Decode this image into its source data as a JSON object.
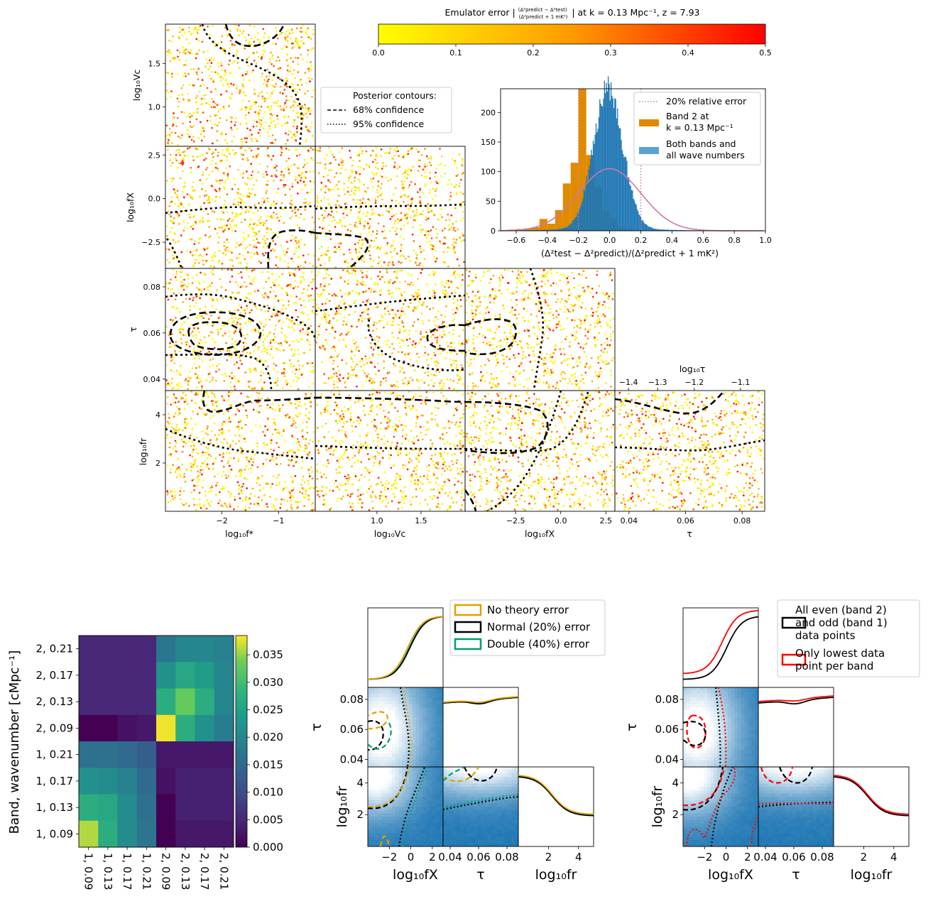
{
  "colors": {
    "scatter_low": "#ffff00",
    "scatter_high": "#ff0000",
    "hist_orange": "#e08a00",
    "hist_blue": "#1f77b4",
    "hist_blue_light": "#5ba3d0",
    "gauss": "#cc79a7",
    "theory_orange": "#e69f00",
    "theory_black": "#000000",
    "theory_green": "#009e73",
    "lowest_red": "#ff0000"
  },
  "chart_data": [
    {
      "type": "scatter",
      "name": "emulator-error-corner",
      "colorbar": {
        "label": "Emulator error |(Δ²predict − Δ²test)/(Δ²predict + 1 mK²)| at k = 0.13 Mpc⁻¹, z = 7.93",
        "label_parts": {
          "prefix": "Emulator error |",
          "num": "(Δ²predict − Δ²test)",
          "den": "(Δ²predict + 1 mK²)",
          "suffix": "| at k = 0.13 Mpc⁻¹, z = 7.93"
        },
        "range": [
          0,
          0.5
        ],
        "ticks": [
          "0.0",
          "0.1",
          "0.2",
          "0.3",
          "0.4",
          "0.5"
        ]
      },
      "legend": {
        "title": "Posterior contours:",
        "entries": [
          "68% confidence",
          "95% confidence"
        ],
        "placement": "right of top panel"
      },
      "parameters": [
        {
          "name": "log10 f*",
          "xlabel": "log₁₀f*",
          "range": [
            -3.0,
            -0.35
          ],
          "ticks": [
            {
              "v": -2,
              "t": "−2"
            },
            {
              "v": -1,
              "t": "−1"
            }
          ]
        },
        {
          "name": "log10 Vc",
          "xlabel": "log₁₀Vc",
          "ylabel": "log₁₀Vc",
          "range": [
            0.3,
            2.0
          ],
          "ticks": [
            {
              "v": 1.0,
              "t": "1.0"
            },
            {
              "v": 1.5,
              "t": "1.5"
            }
          ]
        },
        {
          "name": "log10 fX",
          "xlabel": "log₁₀fX",
          "ylabel": "log₁₀fX",
          "range": [
            -5.3,
            3.0
          ],
          "ticks": [
            {
              "v": -2.5,
              "t": "−2.5"
            },
            {
              "v": 0.0,
              "t": "0.0"
            },
            {
              "v": 2.5,
              "t": "2.5"
            }
          ]
        },
        {
          "name": "tau",
          "xlabel": "τ",
          "ylabel": "τ",
          "range": [
            0.035,
            0.088
          ],
          "ticks": [
            {
              "v": 0.04,
              "t": "0.04"
            },
            {
              "v": 0.06,
              "t": "0.06"
            },
            {
              "v": 0.08,
              "t": "0.08"
            }
          ]
        },
        {
          "name": "log10 fr",
          "ylabel": "log₁₀fr",
          "range": [
            0.0,
            5.0
          ],
          "ticks": [
            {
              "v": 2,
              "t": "2"
            },
            {
              "v": 4,
              "t": "4"
            }
          ]
        }
      ],
      "ylabels": {
        "vc": "log₁₀Vc",
        "fx": "log₁₀fX",
        "tau": "τ",
        "fr": "log₁₀fr"
      },
      "yticks": {
        "vc": [
          {
            "v": 1.0,
            "t": "1.0"
          },
          {
            "v": 1.5,
            "t": "1.5"
          }
        ],
        "fx": [
          {
            "v": -2.5,
            "t": "−2.5"
          },
          {
            "v": 0.0,
            "t": "0.0"
          },
          {
            "v": 2.5,
            "t": "2.5"
          }
        ],
        "tau": [
          {
            "v": 0.04,
            "t": "0.04"
          },
          {
            "v": 0.06,
            "t": "0.06"
          },
          {
            "v": 0.08,
            "t": "0.08"
          }
        ],
        "fr": [
          {
            "v": 2,
            "t": "2"
          },
          {
            "v": 4,
            "t": "4"
          }
        ]
      },
      "top_axis": {
        "label": "log₁₀τ",
        "ticks": [
          {
            "v": -1.4,
            "t": "−1.4"
          },
          {
            "v": -1.3,
            "t": "−1.3"
          },
          {
            "v": -1.2,
            "t": "−1.2"
          },
          {
            "v": -1.1,
            "t": "−1.1"
          }
        ]
      }
    },
    {
      "type": "bar",
      "name": "relative-error-histogram",
      "xlabel": "(Δ²test − Δ²predict)/(Δ²predict + 1 mK²)",
      "xlim": [
        -0.7,
        1.0
      ],
      "ylim": [
        0,
        240
      ],
      "xticks": [
        {
          "v": -0.6,
          "t": "−0.6"
        },
        {
          "v": -0.4,
          "t": "−0.4"
        },
        {
          "v": -0.2,
          "t": "−0.2"
        },
        {
          "v": 0.0,
          "t": "0.0"
        },
        {
          "v": 0.2,
          "t": "0.2"
        },
        {
          "v": 0.4,
          "t": "0.4"
        },
        {
          "v": 0.6,
          "t": "0.6"
        },
        {
          "v": 0.8,
          "t": "0.8"
        },
        {
          "v": 1.0,
          "t": "1.0"
        }
      ],
      "yticks": [
        {
          "v": 0,
          "t": "0"
        },
        {
          "v": 50,
          "t": "50"
        },
        {
          "v": 100,
          "t": "100"
        },
        {
          "v": 150,
          "t": "150"
        },
        {
          "v": 200,
          "t": "200"
        }
      ],
      "vlines": [
        -0.2,
        0.2
      ],
      "gauss": {
        "mean": 0.0,
        "sigma": 0.2,
        "peak": 105
      },
      "blue": {
        "mean": -0.01,
        "sigma": 0.095,
        "peak": 240
      },
      "orange_bins": {
        "start": -0.65,
        "width": 0.05,
        "values": [
          2,
          3,
          4,
          6,
          20,
          12,
          35,
          80,
          115,
          240,
          128,
          75,
          35,
          22,
          6,
          3,
          1
        ]
      },
      "legend": {
        "entries": [
          "20% relative error",
          "Band 2 at",
          "k = 0.13 Mpc⁻¹",
          "Both bands and",
          "all wave numbers"
        ],
        "placement": "top-right"
      }
    },
    {
      "type": "heatmap",
      "name": "covariance-heatmap",
      "ylabel": "Band, wavenumber [cMpc⁻¹]",
      "labels": [
        "1, 0.09",
        "1, 0.13",
        "1, 0.17",
        "1, 0.21",
        "2, 0.09",
        "2, 0.13",
        "2, 0.17",
        "2, 0.21"
      ],
      "rows_top_to_bottom": [
        [
          0.005,
          0.005,
          0.005,
          0.005,
          0.017,
          0.02,
          0.02,
          0.019
        ],
        [
          0.005,
          0.005,
          0.005,
          0.005,
          0.022,
          0.026,
          0.024,
          0.02
        ],
        [
          0.005,
          0.005,
          0.005,
          0.005,
          0.027,
          0.033,
          0.027,
          0.02
        ],
        [
          0.0,
          0.0,
          0.002,
          0.003,
          0.038,
          0.027,
          0.022,
          0.018
        ],
        [
          0.016,
          0.016,
          0.015,
          0.013,
          0.003,
          0.003,
          0.003,
          0.003
        ],
        [
          0.022,
          0.021,
          0.019,
          0.015,
          0.002,
          0.004,
          0.004,
          0.004
        ],
        [
          0.027,
          0.026,
          0.021,
          0.016,
          0.0,
          0.004,
          0.004,
          0.004
        ],
        [
          0.036,
          0.027,
          0.021,
          0.017,
          0.0,
          0.003,
          0.003,
          0.003
        ]
      ],
      "colorbar": {
        "range": [
          0,
          0.0385
        ],
        "ticks": [
          {
            "v": 0.0,
            "t": "0.000"
          },
          {
            "v": 0.005,
            "t": "0.005"
          },
          {
            "v": 0.01,
            "t": "0.010"
          },
          {
            "v": 0.015,
            "t": "0.015"
          },
          {
            "v": 0.02,
            "t": "0.020"
          },
          {
            "v": 0.025,
            "t": "0.025"
          },
          {
            "v": 0.03,
            "t": "0.030"
          },
          {
            "v": 0.035,
            "t": "0.035"
          }
        ]
      }
    },
    {
      "type": "line",
      "name": "theory-error-corner",
      "labels": {
        "x1": "log₁₀fX",
        "x2": "τ",
        "x3": "log₁₀fr",
        "y1": "τ",
        "y2": "log₁₀fr"
      },
      "xticks": {
        "fx": [
          {
            "v": -2,
            "t": "−2"
          },
          {
            "v": 0,
            "t": "0"
          },
          {
            "v": 2,
            "t": "2"
          }
        ],
        "tau": [
          {
            "v": 0.04,
            "t": "0.04"
          },
          {
            "v": 0.06,
            "t": "0.06"
          },
          {
            "v": 0.08,
            "t": "0.08"
          }
        ],
        "fr": [
          {
            "v": 2,
            "t": "2"
          },
          {
            "v": 4,
            "t": "4"
          }
        ]
      },
      "yticks": {
        "tau": [
          {
            "v": 0.04,
            "t": "0.04"
          },
          {
            "v": 0.06,
            "t": "0.06"
          },
          {
            "v": 0.08,
            "t": "0.08"
          }
        ],
        "fr": [
          {
            "v": 2,
            "t": "2"
          },
          {
            "v": 4,
            "t": "4"
          }
        ]
      },
      "xlabel_fx_right": "2",
      "legend": {
        "entries": [
          "No theory error",
          "Normal (20%) error",
          "Double (40%) error"
        ],
        "placement": "top-right"
      }
    },
    {
      "type": "line",
      "name": "data-points-corner",
      "labels": {
        "x1": "log₁₀fX",
        "x2": "τ",
        "x3": "log₁₀fr",
        "y1": "τ",
        "y2": "log₁₀fr"
      },
      "legend": {
        "entries": [
          "All even (band 2)",
          "and odd (band 1)",
          "data points",
          "Only lowest data",
          "point per band"
        ],
        "placement": "top-right"
      }
    }
  ]
}
